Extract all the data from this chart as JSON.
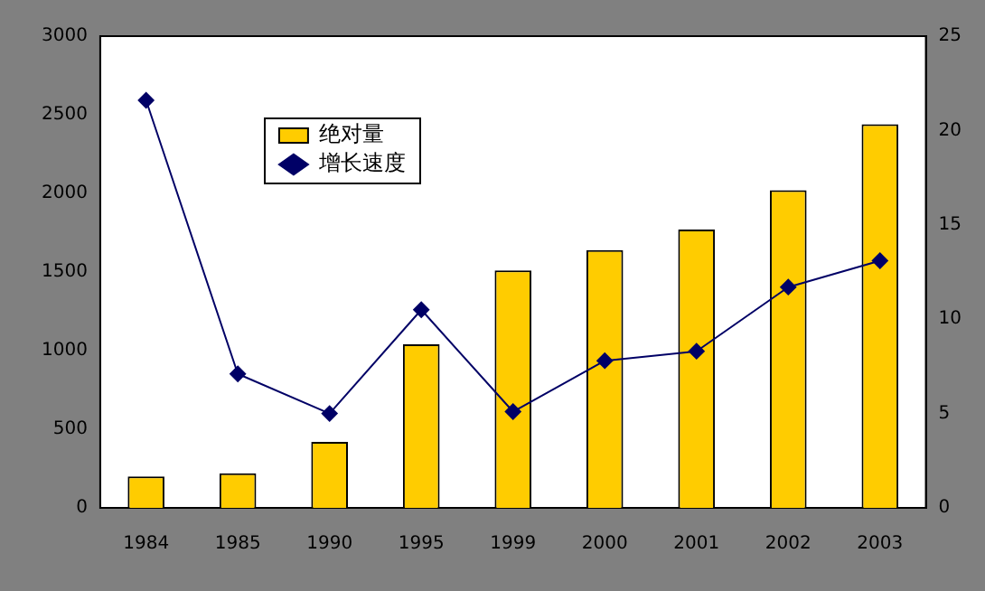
{
  "chart_data": {
    "type": "bar",
    "categories": [
      "1984",
      "1985",
      "1990",
      "1995",
      "1999",
      "2000",
      "2001",
      "2002",
      "2003"
    ],
    "series": [
      {
        "name": "绝对量",
        "color": "#ffcc00",
        "values": [
          200,
          220,
          420,
          1040,
          1510,
          1640,
          1770,
          2020,
          2440
        ]
      },
      {
        "name": "增长速度",
        "type": "line",
        "axis": "y2",
        "color": "#000066",
        "marker": "diamond",
        "values": [
          21.6,
          7.1,
          5.0,
          10.5,
          5.1,
          7.8,
          8.3,
          11.7,
          13.1
        ]
      }
    ],
    "ylim": [
      0,
      3000
    ],
    "yticks": [
      0,
      500,
      1000,
      1500,
      2000,
      2500,
      3000
    ],
    "y2lim": [
      0,
      25
    ],
    "y2ticks": [
      0,
      5,
      10,
      15,
      20,
      25
    ],
    "grid": false,
    "legend": "top"
  }
}
